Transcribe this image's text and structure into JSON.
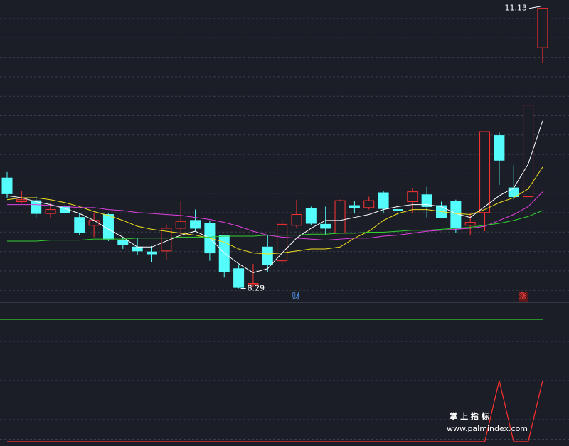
{
  "chart_data": {
    "type": "candlestick",
    "categories": [
      null,
      null,
      null,
      null,
      null,
      null,
      null,
      null,
      null,
      null,
      null,
      null,
      null,
      null,
      null,
      null,
      null,
      null,
      null,
      null,
      null,
      null,
      null,
      null,
      null,
      null,
      null,
      null,
      null,
      null,
      null,
      null,
      null,
      null,
      null,
      null,
      null,
      null
    ],
    "open": [
      9.41,
      9.17,
      9.18,
      9.05,
      9.12,
      9.01,
      8.93,
      9.04,
      8.78,
      8.71,
      8.66,
      8.67,
      8.9,
      8.98,
      8.95,
      8.83,
      8.49,
      8.33,
      8.71,
      8.57,
      8.93,
      9.1,
      8.94,
      8.85,
      9.13,
      9.11,
      9.26,
      9.09,
      9.17,
      9.24,
      9.13,
      9.17,
      8.93,
      9.06,
      9.84,
      9.31,
      9.22,
      10.73
    ],
    "close": [
      9.25,
      9.19,
      9.05,
      9.09,
      9.06,
      8.86,
      8.98,
      8.79,
      8.73,
      8.67,
      8.64,
      8.9,
      8.97,
      8.9,
      8.65,
      8.46,
      8.3,
      8.34,
      8.53,
      8.94,
      9.04,
      8.95,
      8.9,
      9.18,
      9.11,
      9.18,
      9.1,
      9.08,
      9.27,
      9.12,
      9.01,
      8.9,
      8.96,
      9.88,
      9.59,
      9.22,
      10.15,
      11.13
    ],
    "high": [
      9.47,
      9.28,
      9.23,
      9.16,
      9.14,
      9.05,
      9.05,
      9.05,
      8.81,
      8.8,
      8.72,
      8.94,
      9.18,
      9.09,
      8.98,
      8.83,
      8.53,
      8.54,
      8.83,
      8.99,
      9.19,
      9.12,
      9.12,
      9.19,
      9.18,
      9.22,
      9.28,
      9.16,
      9.31,
      9.32,
      9.17,
      9.19,
      9.05,
      9.88,
      9.88,
      9.54,
      10.15,
      11.13
    ],
    "low": [
      9.21,
      9.16,
      9.01,
      9.01,
      9.04,
      8.83,
      8.81,
      8.77,
      8.69,
      8.63,
      8.56,
      8.58,
      8.8,
      8.87,
      8.57,
      8.4,
      8.29,
      8.31,
      8.46,
      8.53,
      8.9,
      8.93,
      8.83,
      8.85,
      9.05,
      9.09,
      9.05,
      9.01,
      9.05,
      9.01,
      9.0,
      8.85,
      8.83,
      8.87,
      9.34,
      9.19,
      9.21,
      10.58
    ],
    "up_color": "#ff3232",
    "down_color": "#54fcfc",
    "ylim": [
      8.2,
      11.2
    ],
    "series": [
      {
        "color": "#ffffff",
        "values": [
          9.23,
          9.21,
          9.17,
          9.14,
          9.1,
          9.05,
          8.98,
          8.89,
          8.81,
          8.71,
          8.71,
          8.77,
          8.83,
          8.87,
          8.8,
          8.65,
          8.54,
          8.45,
          8.49,
          8.65,
          8.8,
          8.9,
          8.98,
          8.98,
          9.01,
          9.04,
          9.09,
          9.12,
          9.14,
          9.14,
          9.12,
          9.05,
          9.01,
          9.12,
          9.23,
          9.31,
          9.55,
          9.99
        ]
      },
      {
        "color": "#f0e020",
        "values": [
          9.19,
          9.21,
          9.21,
          9.19,
          9.16,
          9.12,
          9.07,
          9.03,
          8.98,
          8.92,
          8.89,
          8.87,
          8.85,
          8.83,
          8.8,
          8.76,
          8.69,
          8.65,
          8.64,
          8.65,
          8.67,
          8.69,
          8.69,
          8.71,
          8.8,
          8.87,
          8.98,
          9.05,
          9.09,
          9.09,
          9.07,
          9.05,
          9.04,
          9.09,
          9.16,
          9.21,
          9.3,
          9.52
        ]
      },
      {
        "color": "#e040e0",
        "values": [
          9.14,
          9.14,
          9.14,
          9.13,
          9.12,
          9.11,
          9.11,
          9.09,
          9.08,
          9.06,
          9.05,
          9.04,
          9.03,
          9.01,
          8.99,
          8.96,
          8.92,
          8.87,
          8.83,
          8.81,
          8.8,
          8.79,
          8.78,
          8.79,
          8.8,
          8.8,
          8.82,
          8.83,
          8.85,
          8.87,
          8.88,
          8.89,
          8.9,
          8.92,
          8.98,
          9.04,
          9.12,
          9.27
        ]
      },
      {
        "color": "#30d030",
        "values": [
          8.77,
          8.77,
          8.77,
          8.78,
          8.78,
          8.78,
          8.79,
          8.79,
          8.79,
          8.8,
          8.8,
          8.8,
          8.81,
          8.81,
          8.81,
          8.82,
          8.82,
          8.82,
          8.83,
          8.83,
          8.83,
          8.84,
          8.84,
          8.85,
          8.85,
          8.86,
          8.86,
          8.87,
          8.88,
          8.88,
          8.89,
          8.9,
          8.91,
          8.93,
          8.95,
          8.98,
          9.02,
          9.08
        ]
      }
    ],
    "max_label": 11.13,
    "min_label": 8.29,
    "annotations": [
      "财",
      "涨"
    ],
    "indicator": {
      "ylim": [
        0,
        2.2
      ],
      "values": [
        0,
        0,
        0,
        0,
        0,
        0,
        0,
        0,
        0,
        0,
        0,
        0,
        0,
        0,
        0,
        0,
        0,
        0,
        0,
        0,
        0,
        0,
        0,
        0,
        0,
        0,
        0,
        0,
        0,
        0,
        0,
        0,
        0,
        0,
        1,
        0,
        0,
        1
      ],
      "color": "#ff3030",
      "level": 2,
      "level_color": "#30d030"
    }
  },
  "watermark": {
    "title": "掌 上 指 标",
    "url": "www.palmindex.com"
  }
}
